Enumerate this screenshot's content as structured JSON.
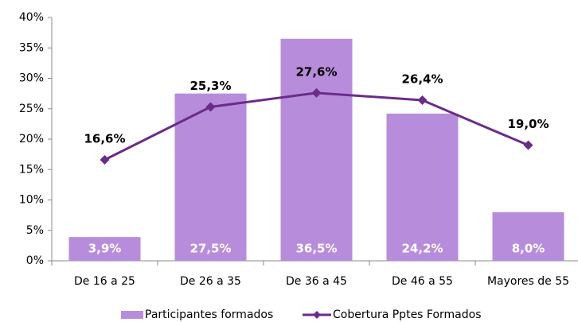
{
  "chart_data": {
    "type": "bar",
    "categories": [
      "De 16 a 25",
      "De 26 a 35",
      "De 36 a 45",
      "De 46 a 55",
      "Mayores de 55"
    ],
    "series": [
      {
        "name": "Participantes formados",
        "type": "bar",
        "color": "#b78ddb",
        "values": [
          3.9,
          27.5,
          36.5,
          24.2,
          8.0
        ],
        "value_labels": [
          "3,9%",
          "27,5%",
          "36,5%",
          "24,2%",
          "8,0%"
        ]
      },
      {
        "name": "Cobertura Pptes Formados",
        "type": "line",
        "color": "#6a2c8a",
        "values": [
          16.6,
          25.3,
          27.6,
          26.4,
          19.0
        ],
        "value_labels": [
          "16,6%",
          "25,3%",
          "27,6%",
          "26,4%",
          "19,0%"
        ]
      }
    ],
    "ylim": [
      0,
      40
    ],
    "yticks": [
      {
        "value": 0,
        "label": "0%"
      },
      {
        "value": 5,
        "label": "5%"
      },
      {
        "value": 10,
        "label": "10%"
      },
      {
        "value": 15,
        "label": "15%"
      },
      {
        "value": 20,
        "label": "20%"
      },
      {
        "value": 25,
        "label": "25%"
      },
      {
        "value": 30,
        "label": "30%"
      },
      {
        "value": 35,
        "label": "35%"
      },
      {
        "value": 40,
        "label": "40%"
      }
    ],
    "legend": "bottom"
  }
}
